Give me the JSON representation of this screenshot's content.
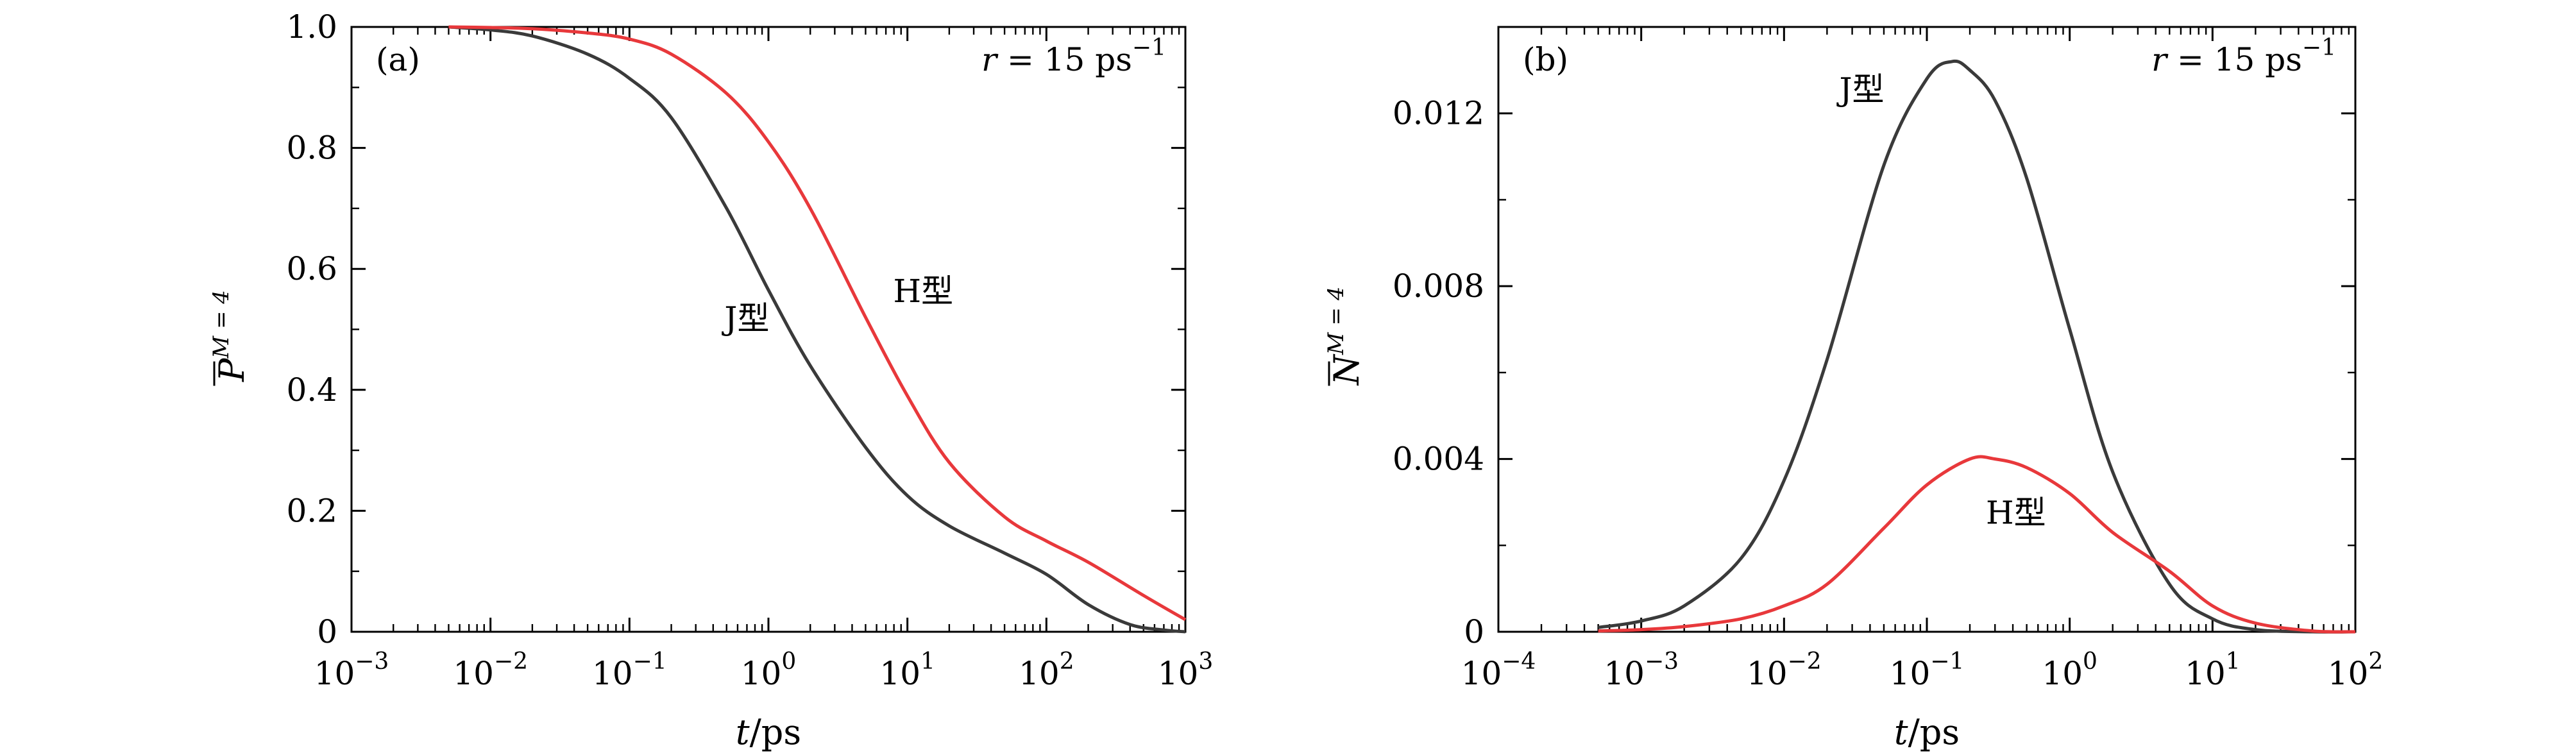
{
  "chart_data": [
    {
      "panel": "(a)",
      "type": "line",
      "annotation": "r = 15 ps⁻¹",
      "annotation_parts": {
        "var": "r",
        "eq": " = 15 ps",
        "exp": "−1"
      },
      "xlabel": "t/ps",
      "xlabel_parts": {
        "var": "t",
        "unit": "/ps"
      },
      "ylabel_parts": {
        "base": "P",
        "sup": "M = 4"
      },
      "x_scale": "log",
      "xlim": [
        0.001,
        1000
      ],
      "ylim": [
        0,
        1.0
      ],
      "x_ticks": [
        0.001,
        0.01,
        0.1,
        1,
        10,
        100,
        1000
      ],
      "x_tick_labels": [
        {
          "base": "10",
          "exp": "−3"
        },
        {
          "base": "10",
          "exp": "−2"
        },
        {
          "base": "10",
          "exp": "−1"
        },
        {
          "base": "10",
          "exp": "0"
        },
        {
          "base": "10",
          "exp": "1"
        },
        {
          "base": "10",
          "exp": "2"
        },
        {
          "base": "10",
          "exp": "3"
        }
      ],
      "y_ticks": [
        0,
        0.2,
        0.4,
        0.6,
        0.8,
        1.0
      ],
      "y_tick_labels": [
        "0",
        "0.2",
        "0.4",
        "0.6",
        "0.8",
        "1.0"
      ],
      "series": [
        {
          "name": "J型",
          "color": "#3a3a3a",
          "label_at": [
            0.7,
            0.5
          ],
          "x": [
            0.005,
            0.01,
            0.02,
            0.05,
            0.1,
            0.2,
            0.5,
            1,
            2,
            5,
            10,
            20,
            50,
            100,
            200,
            400,
            700,
            1000
          ],
          "y": [
            1.0,
            0.995,
            0.985,
            0.955,
            0.915,
            0.85,
            0.7,
            0.565,
            0.44,
            0.305,
            0.225,
            0.175,
            0.13,
            0.095,
            0.045,
            0.012,
            0.003,
            0.0
          ]
        },
        {
          "name": "H型",
          "color": "#e8383b",
          "label_at": [
            13,
            0.545
          ],
          "x": [
            0.005,
            0.01,
            0.02,
            0.05,
            0.1,
            0.2,
            0.5,
            1,
            2,
            5,
            10,
            20,
            50,
            100,
            200,
            500,
            1000
          ],
          "y": [
            1.0,
            0.999,
            0.997,
            0.99,
            0.98,
            0.955,
            0.89,
            0.81,
            0.7,
            0.52,
            0.39,
            0.28,
            0.19,
            0.15,
            0.115,
            0.06,
            0.02
          ]
        }
      ]
    },
    {
      "panel": "(b)",
      "type": "line",
      "annotation": "r = 15 ps⁻¹",
      "annotation_parts": {
        "var": "r",
        "eq": " = 15 ps",
        "exp": "−1"
      },
      "xlabel": "t/ps",
      "xlabel_parts": {
        "var": "t",
        "unit": "/ps"
      },
      "ylabel_parts": {
        "base": "N",
        "sup": "M = 4"
      },
      "x_scale": "log",
      "xlim": [
        0.0001,
        100
      ],
      "ylim": [
        0,
        0.014
      ],
      "x_ticks": [
        0.0001,
        0.001,
        0.01,
        0.1,
        1,
        10,
        100
      ],
      "x_tick_labels": [
        {
          "base": "10",
          "exp": "−4"
        },
        {
          "base": "10",
          "exp": "−3"
        },
        {
          "base": "10",
          "exp": "−2"
        },
        {
          "base": "10",
          "exp": "−1"
        },
        {
          "base": "10",
          "exp": "0"
        },
        {
          "base": "10",
          "exp": "1"
        },
        {
          "base": "10",
          "exp": "2"
        }
      ],
      "y_ticks": [
        0,
        0.004,
        0.008,
        0.012
      ],
      "y_tick_labels": [
        "0",
        "0.004",
        "0.008",
        "0.012"
      ],
      "series": [
        {
          "name": "J型",
          "color": "#3a3a3a",
          "label_at": [
            0.035,
            0.0123
          ],
          "x": [
            0.0005,
            0.001,
            0.002,
            0.005,
            0.01,
            0.02,
            0.05,
            0.1,
            0.15,
            0.2,
            0.3,
            0.5,
            1,
            2,
            5,
            10,
            20,
            50,
            100
          ],
          "y": [
            0.0001,
            0.00025,
            0.0006,
            0.0017,
            0.0035,
            0.0063,
            0.0108,
            0.0128,
            0.0132,
            0.013,
            0.0123,
            0.0105,
            0.007,
            0.0037,
            0.0011,
            0.0003,
            5e-05,
            0.0,
            0.0
          ]
        },
        {
          "name": "H型",
          "color": "#e8383b",
          "label_at": [
            0.42,
            0.0025
          ],
          "x": [
            0.0005,
            0.001,
            0.002,
            0.005,
            0.01,
            0.02,
            0.05,
            0.1,
            0.2,
            0.3,
            0.5,
            1,
            2,
            5,
            10,
            20,
            50,
            100
          ],
          "y": [
            2e-05,
            5e-05,
            0.00012,
            0.0003,
            0.0006,
            0.0011,
            0.0024,
            0.0034,
            0.004,
            0.004,
            0.0038,
            0.0032,
            0.0023,
            0.0014,
            0.0006,
            0.0002,
            2e-05,
            0.0
          ]
        }
      ]
    }
  ]
}
